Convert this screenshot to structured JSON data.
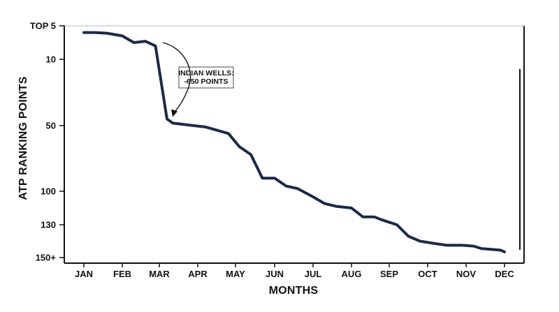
{
  "chart_data": {
    "type": "line",
    "title": "",
    "xlabel": "MONTHS",
    "ylabel": "ATP RANKING POINTS",
    "categories": [
      "JAN",
      "FEB",
      "MAR",
      "APR",
      "MAY",
      "JUN",
      "JUL",
      "AUG",
      "SEP",
      "OCT",
      "NOV",
      "DEC"
    ],
    "y_ticks": [
      {
        "label": "TOP 5",
        "value": 5
      },
      {
        "label": "10",
        "value": 10
      },
      {
        "label": "50",
        "value": 50
      },
      {
        "label": "100",
        "value": 100
      },
      {
        "label": "130",
        "value": 130
      },
      {
        "label": "150+",
        "value": 150
      }
    ],
    "y_axis_note": "categorical-like scale with tick labels TOP 5, 10, 50, 100, 130, 150+ (top to bottom); higher numbers lower",
    "grid": false,
    "reference_line_at": "TOP 5",
    "line_color": "#1b2a4a",
    "series": [
      {
        "name": "",
        "points": [
          {
            "x": "JAN",
            "y": 6
          },
          {
            "x": "JAN+0.3",
            "y": 6
          },
          {
            "x": "JAN+0.6",
            "y": 6.1
          },
          {
            "x": "FEB",
            "y": 6.5
          },
          {
            "x": "FEB+0.3",
            "y": 7.5
          },
          {
            "x": "FEB+0.6",
            "y": 7.3
          },
          {
            "x": "MAR-0.1",
            "y": 8
          },
          {
            "x": "MAR+0.2",
            "y": 46
          },
          {
            "x": "MAR+0.35",
            "y": 48.5
          },
          {
            "x": "APR-0.1",
            "y": 50
          },
          {
            "x": "APR+0.2",
            "y": 51
          },
          {
            "x": "APR+0.5",
            "y": 53.5
          },
          {
            "x": "APR+0.8",
            "y": 56
          },
          {
            "x": "MAY+0.1",
            "y": 66
          },
          {
            "x": "MAY+0.4",
            "y": 72
          },
          {
            "x": "MAY+0.7",
            "y": 90
          },
          {
            "x": "JUN",
            "y": 90
          },
          {
            "x": "JUN+0.3",
            "y": 96
          },
          {
            "x": "JUN+0.6",
            "y": 98
          },
          {
            "x": "JUL",
            "y": 105
          },
          {
            "x": "JUL+0.3",
            "y": 111
          },
          {
            "x": "JUL+0.6",
            "y": 113.5
          },
          {
            "x": "AUG",
            "y": 115
          },
          {
            "x": "AUG+0.3",
            "y": 123
          },
          {
            "x": "AUG+0.6",
            "y": 123
          },
          {
            "x": "SEP-0.2",
            "y": 125.5
          },
          {
            "x": "SEP+0.2",
            "y": 130
          },
          {
            "x": "SEP+0.5",
            "y": 137
          },
          {
            "x": "OCT-0.2",
            "y": 140
          },
          {
            "x": "OCT+0.2",
            "y": 141.5
          },
          {
            "x": "OCT+0.5",
            "y": 142.5
          },
          {
            "x": "NOV-0.1",
            "y": 142.5
          },
          {
            "x": "NOV+0.2",
            "y": 143
          },
          {
            "x": "NOV+0.4",
            "y": 144.5
          },
          {
            "x": "DEC-0.1",
            "y": 145.5
          },
          {
            "x": "DEC",
            "y": 146.5
          }
        ]
      }
    ],
    "annotations": [
      {
        "lines": [
          "INDIAN WELLS:",
          "-650 POINTS"
        ],
        "points_to": {
          "x": "MAR+0.2",
          "y": 46
        }
      }
    ]
  }
}
